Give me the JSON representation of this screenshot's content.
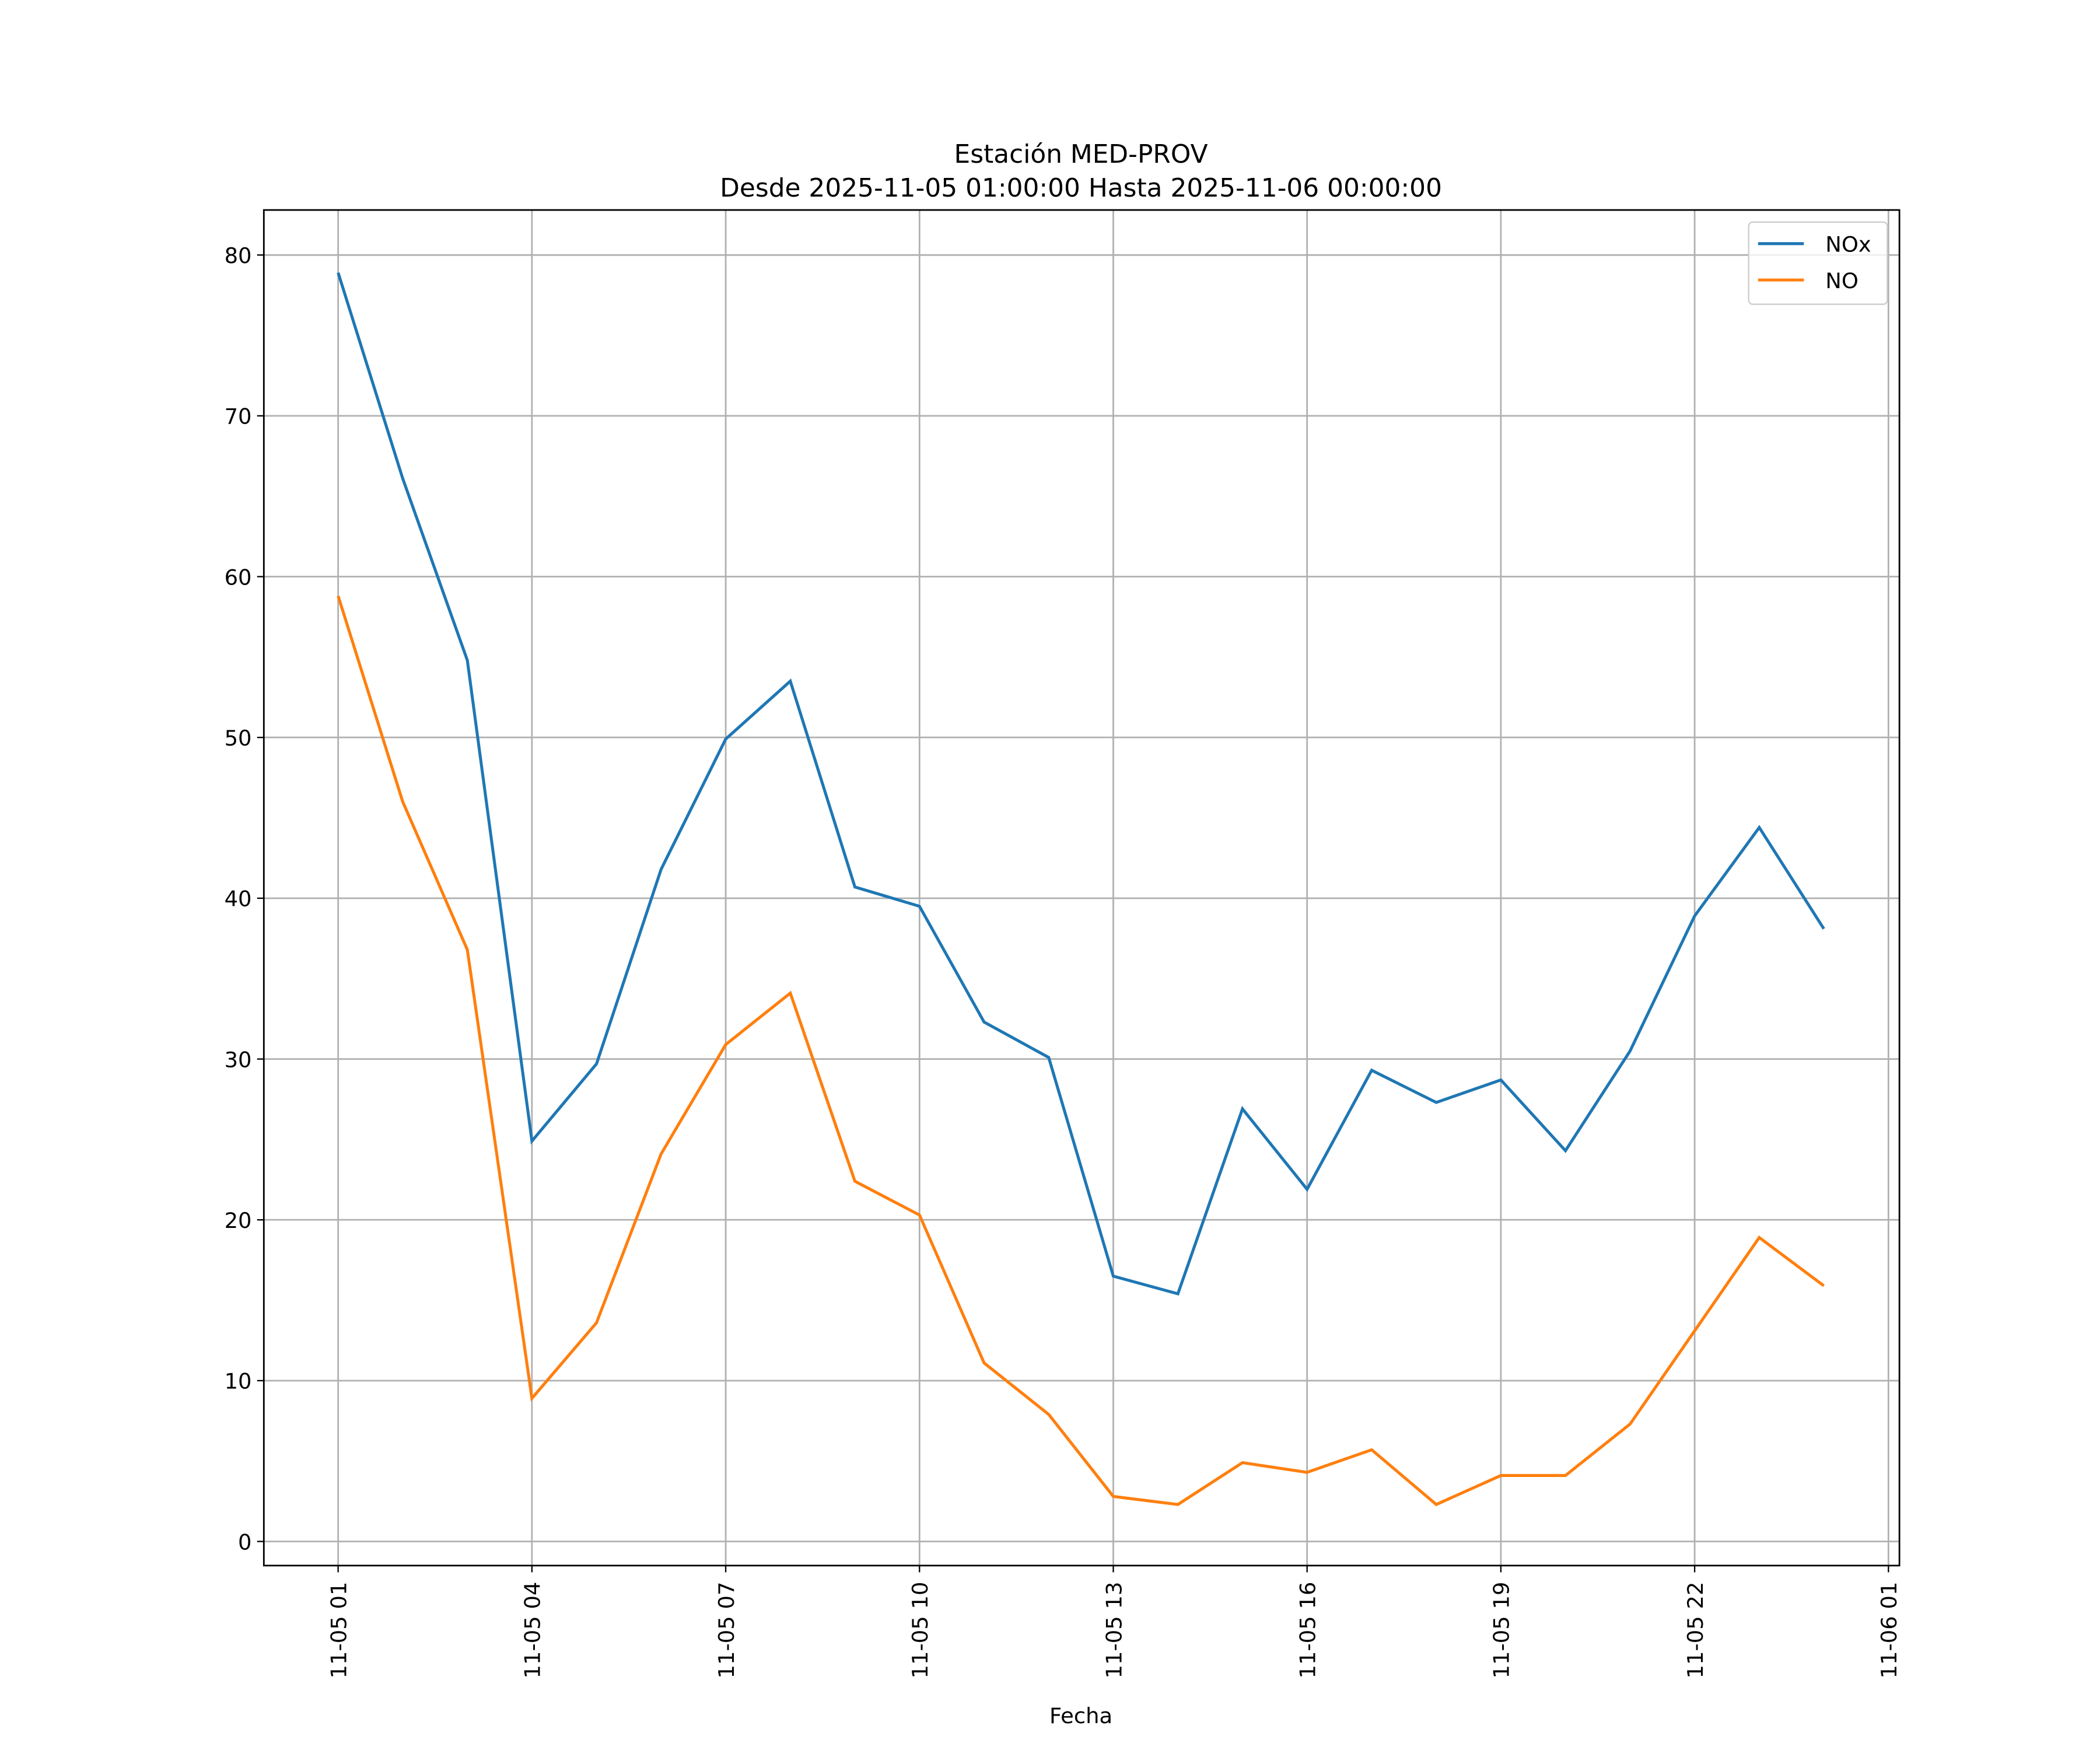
{
  "chart_data": {
    "type": "line",
    "title": "Estación MED-PROV",
    "subtitle": "Desde 2025-11-05 01:00:00 Hasta 2025-11-06 00:00:00",
    "xlabel": "Fecha",
    "ylabel": "",
    "x": [
      "11-05 01",
      "11-05 02",
      "11-05 03",
      "11-05 04",
      "11-05 05",
      "11-05 06",
      "11-05 07",
      "11-05 08",
      "11-05 09",
      "11-05 10",
      "11-05 11",
      "11-05 12",
      "11-05 13",
      "11-05 14",
      "11-05 15",
      "11-05 16",
      "11-05 17",
      "11-05 18",
      "11-05 19",
      "11-05 20",
      "11-05 21",
      "11-05 22",
      "11-05 23",
      "11-06 00"
    ],
    "series": [
      {
        "name": "NOx",
        "color": "#1f77b4",
        "values": [
          78.9,
          66.1,
          54.8,
          24.9,
          29.7,
          41.8,
          49.9,
          53.5,
          40.7,
          39.5,
          32.3,
          30.1,
          16.5,
          15.4,
          26.9,
          21.9,
          29.3,
          27.3,
          28.7,
          24.3,
          30.5,
          38.9,
          44.4,
          38.1
        ]
      },
      {
        "name": "NO",
        "color": "#ff7f0e",
        "values": [
          58.8,
          46.0,
          36.8,
          8.9,
          13.6,
          24.1,
          30.9,
          34.1,
          22.4,
          20.3,
          11.1,
          7.9,
          2.8,
          2.3,
          4.9,
          4.3,
          5.7,
          2.3,
          4.1,
          4.1,
          7.3,
          13.1,
          18.9,
          15.9
        ]
      }
    ],
    "xticks": [
      "11-05 01",
      "11-05 04",
      "11-05 07",
      "11-05 10",
      "11-05 13",
      "11-05 16",
      "11-05 19",
      "11-05 22",
      "11-06 01"
    ],
    "yticks": [
      "0",
      "10",
      "20",
      "30",
      "40",
      "50",
      "60",
      "70",
      "80"
    ],
    "ylim": [
      -1.5,
      82.8
    ],
    "xlim_hours_from_first": [
      -1.15,
      24.17
    ],
    "grid": true,
    "legend_position": "top-right"
  }
}
